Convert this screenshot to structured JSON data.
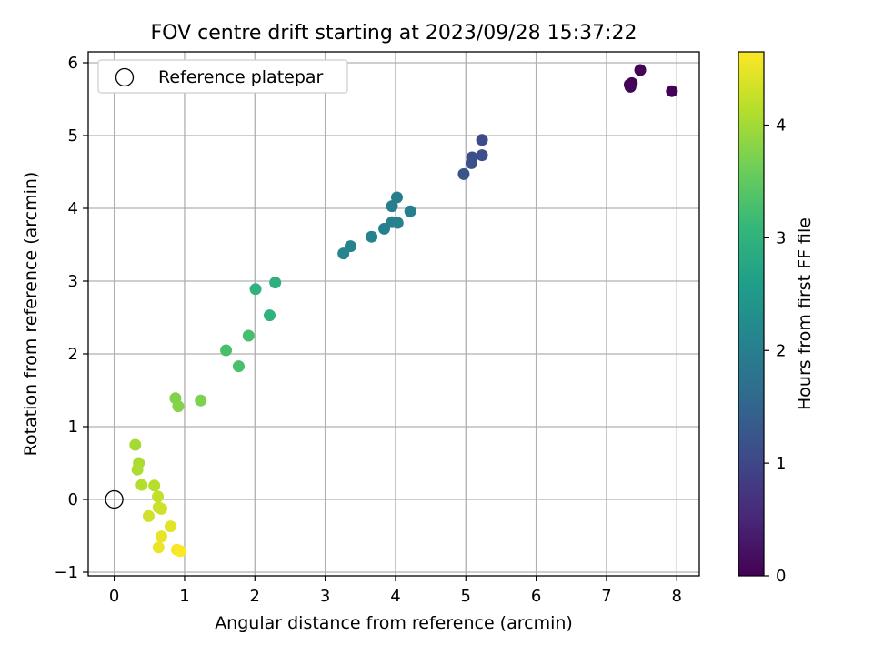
{
  "chart_data": {
    "type": "scatter",
    "title": "FOV centre drift starting at 2023/09/28 15:37:22",
    "xlabel": "Angular distance from reference (arcmin)",
    "ylabel": "Rotation from reference (arcmin)",
    "xlim": [
      -0.37,
      8.32
    ],
    "ylim": [
      -1.05,
      6.15
    ],
    "xticks": [
      0,
      1,
      2,
      3,
      4,
      5,
      6,
      7,
      8
    ],
    "yticks": [
      -1,
      0,
      1,
      2,
      3,
      4,
      5,
      6
    ],
    "grid": true,
    "legend": {
      "placement": "top-left",
      "entries": [
        "Reference platepar"
      ]
    },
    "reference_point": {
      "x": 0,
      "y": 0,
      "label": "Reference platepar",
      "marker": "open-circle"
    },
    "colorbar": {
      "label": "Hours from first FF file",
      "range": [
        0,
        4.65
      ],
      "ticks": [
        0,
        1,
        2,
        3,
        4
      ],
      "colormap": "viridis"
    },
    "colormap_stops": [
      "#440154",
      "#482878",
      "#3e4989",
      "#31688e",
      "#26828e",
      "#1f9e89",
      "#35b779",
      "#6ece58",
      "#b5de2b",
      "#fde725"
    ],
    "series": [
      {
        "points": [
          {
            "x": 7.36,
            "y": 5.72,
            "h": 0.02
          },
          {
            "x": 7.48,
            "y": 5.9,
            "h": 0.05
          },
          {
            "x": 7.93,
            "y": 5.61,
            "h": 0.03
          },
          {
            "x": 7.34,
            "y": 5.67,
            "h": 0.04
          },
          {
            "x": 7.33,
            "y": 5.7,
            "h": 0.06
          },
          {
            "x": 5.23,
            "y": 4.94,
            "h": 1.05
          },
          {
            "x": 5.09,
            "y": 4.7,
            "h": 1.1
          },
          {
            "x": 5.23,
            "y": 4.73,
            "h": 1.15
          },
          {
            "x": 5.08,
            "y": 4.62,
            "h": 1.18
          },
          {
            "x": 4.97,
            "y": 4.47,
            "h": 1.22
          },
          {
            "x": 4.02,
            "y": 4.15,
            "h": 1.95
          },
          {
            "x": 3.95,
            "y": 4.03,
            "h": 1.98
          },
          {
            "x": 4.21,
            "y": 3.96,
            "h": 2.0
          },
          {
            "x": 3.95,
            "y": 3.81,
            "h": 2.02
          },
          {
            "x": 4.03,
            "y": 3.8,
            "h": 2.04
          },
          {
            "x": 3.84,
            "y": 3.72,
            "h": 2.05
          },
          {
            "x": 3.66,
            "y": 3.61,
            "h": 2.06
          },
          {
            "x": 3.36,
            "y": 3.48,
            "h": 2.08
          },
          {
            "x": 3.26,
            "y": 3.38,
            "h": 2.1
          },
          {
            "x": 2.29,
            "y": 2.98,
            "h": 2.95
          },
          {
            "x": 2.01,
            "y": 2.89,
            "h": 2.98
          },
          {
            "x": 2.21,
            "y": 2.53,
            "h": 3.0
          },
          {
            "x": 1.91,
            "y": 2.25,
            "h": 3.25
          },
          {
            "x": 1.59,
            "y": 2.05,
            "h": 3.28
          },
          {
            "x": 1.77,
            "y": 1.83,
            "h": 3.3
          },
          {
            "x": 0.87,
            "y": 1.39,
            "h": 3.75
          },
          {
            "x": 1.23,
            "y": 1.36,
            "h": 3.72
          },
          {
            "x": 0.91,
            "y": 1.28,
            "h": 3.78
          },
          {
            "x": 0.3,
            "y": 0.75,
            "h": 4.02
          },
          {
            "x": 0.35,
            "y": 0.5,
            "h": 4.05
          },
          {
            "x": 0.33,
            "y": 0.41,
            "h": 4.08
          },
          {
            "x": 0.39,
            "y": 0.2,
            "h": 4.12
          },
          {
            "x": 0.57,
            "y": 0.19,
            "h": 4.15
          },
          {
            "x": 0.62,
            "y": 0.04,
            "h": 4.22
          },
          {
            "x": 0.63,
            "y": -0.11,
            "h": 4.28
          },
          {
            "x": 0.67,
            "y": -0.13,
            "h": 4.3
          },
          {
            "x": 0.49,
            "y": -0.23,
            "h": 4.32
          },
          {
            "x": 0.8,
            "y": -0.37,
            "h": 4.45
          },
          {
            "x": 0.67,
            "y": -0.51,
            "h": 4.5
          },
          {
            "x": 0.63,
            "y": -0.66,
            "h": 4.52
          },
          {
            "x": 0.89,
            "y": -0.69,
            "h": 4.6
          },
          {
            "x": 0.94,
            "y": -0.71,
            "h": 4.63
          }
        ]
      }
    ]
  }
}
